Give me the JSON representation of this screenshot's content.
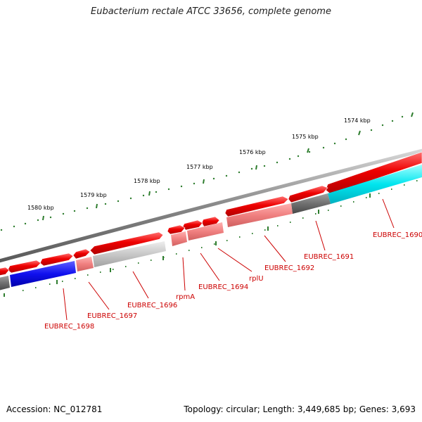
{
  "title": "Eubacterium rectale ATCC 33656, complete genome",
  "footer": {
    "accession": "Accession: NC_012781",
    "summary": "Topology: circular; Length: 3,449,685 bp; Genes: 3,693"
  },
  "scale_labels": [
    "1574 kbp",
    "1575 kbp",
    "1576 kbp",
    "1577 kbp",
    "1578 kbp",
    "1579 kbp",
    "1580 kbp"
  ],
  "gene_labels": [
    "EUBREC_1690",
    "EUBREC_1691",
    "EUBREC_1692",
    "rplU",
    "EUBREC_1694",
    "rpmA",
    "EUBREC_1696",
    "EUBREC_1697",
    "EUBREC_1698"
  ],
  "colors": {
    "forward_gene": "#ee0000",
    "label": "#cc0000",
    "tick": "#2e7d2e",
    "backbone": "#8a8a8a",
    "cog_cyan": "#00e5ee",
    "cog_blue": "#1010ee",
    "cog_pink": "#f08080",
    "cog_lightgray": "#c8c8c8",
    "cog_darkgray": "#707070"
  }
}
